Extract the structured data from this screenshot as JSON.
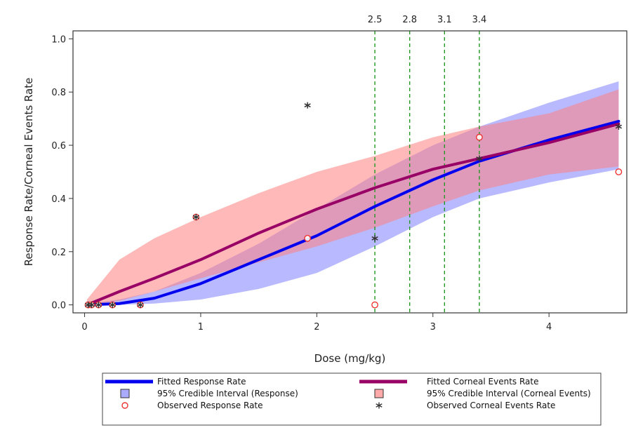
{
  "chart_data": {
    "type": "line",
    "title": "",
    "xlabel": "Dose (mg/kg)",
    "ylabel": "Response Rate/Corneal Events Rate",
    "xlim": [
      -0.1,
      4.67
    ],
    "ylim": [
      -0.03,
      1.03
    ],
    "x_ticks": [
      {
        "value": 0,
        "label": "0"
      },
      {
        "value": 1,
        "label": "1"
      },
      {
        "value": 2,
        "label": "2"
      },
      {
        "value": 3,
        "label": "3"
      },
      {
        "value": 4,
        "label": "4"
      }
    ],
    "y_ticks": [
      {
        "value": 0,
        "label": "0.0"
      },
      {
        "value": 0.2,
        "label": "0.2"
      },
      {
        "value": 0.4,
        "label": "0.4"
      },
      {
        "value": 0.6,
        "label": "0.6"
      },
      {
        "value": 0.8,
        "label": "0.8"
      },
      {
        "value": 1.0,
        "label": "1.0"
      }
    ],
    "grid": false,
    "reference_lines": [
      {
        "x": 2.5,
        "label": "2.5"
      },
      {
        "x": 2.8,
        "label": "2.8"
      },
      {
        "x": 3.1,
        "label": "3.1"
      },
      {
        "x": 3.4,
        "label": "3.4"
      }
    ],
    "bands": [
      {
        "name": "95% Credible Interval (Response)",
        "color": "#8080ff",
        "x": [
          0.02,
          0.3,
          0.6,
          1.0,
          1.5,
          2.0,
          2.5,
          3.0,
          3.4,
          4.0,
          4.6
        ],
        "lower": [
          0.0,
          0.0,
          0.005,
          0.02,
          0.06,
          0.12,
          0.22,
          0.33,
          0.4,
          0.46,
          0.51
        ],
        "upper": [
          0.005,
          0.02,
          0.05,
          0.12,
          0.23,
          0.36,
          0.49,
          0.6,
          0.67,
          0.76,
          0.84
        ]
      },
      {
        "name": "95% Credible Interval (Corneal Events)",
        "color": "#ff8080",
        "x": [
          0.02,
          0.3,
          0.6,
          1.0,
          1.5,
          2.0,
          2.5,
          3.0,
          3.4,
          4.0,
          4.6
        ],
        "lower": [
          0.0,
          0.015,
          0.05,
          0.1,
          0.16,
          0.22,
          0.29,
          0.37,
          0.43,
          0.49,
          0.52
        ],
        "upper": [
          0.02,
          0.17,
          0.25,
          0.33,
          0.42,
          0.5,
          0.56,
          0.63,
          0.67,
          0.72,
          0.81
        ]
      }
    ],
    "series": [
      {
        "name": "Fitted Response Rate",
        "color": "#0000ee",
        "x": [
          0.02,
          0.3,
          0.6,
          1.0,
          1.5,
          2.0,
          2.5,
          3.0,
          3.4,
          4.0,
          4.6
        ],
        "y": [
          0.0,
          0.005,
          0.025,
          0.08,
          0.17,
          0.26,
          0.37,
          0.47,
          0.54,
          0.62,
          0.69
        ]
      },
      {
        "name": "Fitted Corneal Events Rate",
        "color": "#990066",
        "x": [
          0.02,
          0.3,
          0.6,
          1.0,
          1.5,
          2.0,
          2.5,
          3.0,
          3.4,
          4.0,
          4.6
        ],
        "y": [
          0.0,
          0.05,
          0.1,
          0.17,
          0.27,
          0.36,
          0.44,
          0.51,
          0.55,
          0.61,
          0.68
        ]
      }
    ],
    "scatter": [
      {
        "name": "Observed Response Rate",
        "color": "#ee3333",
        "marker": "circle",
        "points": [
          [
            0.03,
            0.0
          ],
          [
            0.06,
            0.0
          ],
          [
            0.12,
            0.0
          ],
          [
            0.24,
            0.0
          ],
          [
            0.48,
            0.0
          ],
          [
            0.96,
            0.33
          ],
          [
            1.92,
            0.25
          ],
          [
            2.5,
            0.0
          ],
          [
            3.4,
            0.63
          ],
          [
            4.6,
            0.5
          ]
        ]
      },
      {
        "name": "Observed Corneal Events Rate",
        "color": "#333333",
        "marker": "star",
        "points": [
          [
            0.03,
            0.0
          ],
          [
            0.06,
            0.0
          ],
          [
            0.12,
            0.0
          ],
          [
            0.24,
            0.0
          ],
          [
            0.48,
            0.0
          ],
          [
            0.96,
            0.33
          ],
          [
            1.92,
            0.75
          ],
          [
            2.5,
            0.25
          ],
          [
            3.4,
            0.55
          ],
          [
            4.6,
            0.67
          ]
        ]
      }
    ],
    "legend": {
      "placement": "bottom",
      "entries": [
        {
          "label": "Fitted Response Rate",
          "symbol": "line",
          "color": "#0000ee"
        },
        {
          "label": "95% Credible Interval (Response)",
          "symbol": "square",
          "color": "#aaaaff"
        },
        {
          "label": "Observed Response Rate",
          "symbol": "circle",
          "color": "#ee3333"
        },
        {
          "label": "Fitted Corneal Events Rate",
          "symbol": "line",
          "color": "#990066"
        },
        {
          "label": "95% Credible Interval (Corneal Events)",
          "symbol": "square",
          "color": "#ffaaaa"
        },
        {
          "label": "Observed Corneal Events Rate",
          "symbol": "star",
          "color": "#333333"
        }
      ]
    },
    "colors": {
      "reference_line": "#229922",
      "frame": "#333333"
    }
  }
}
